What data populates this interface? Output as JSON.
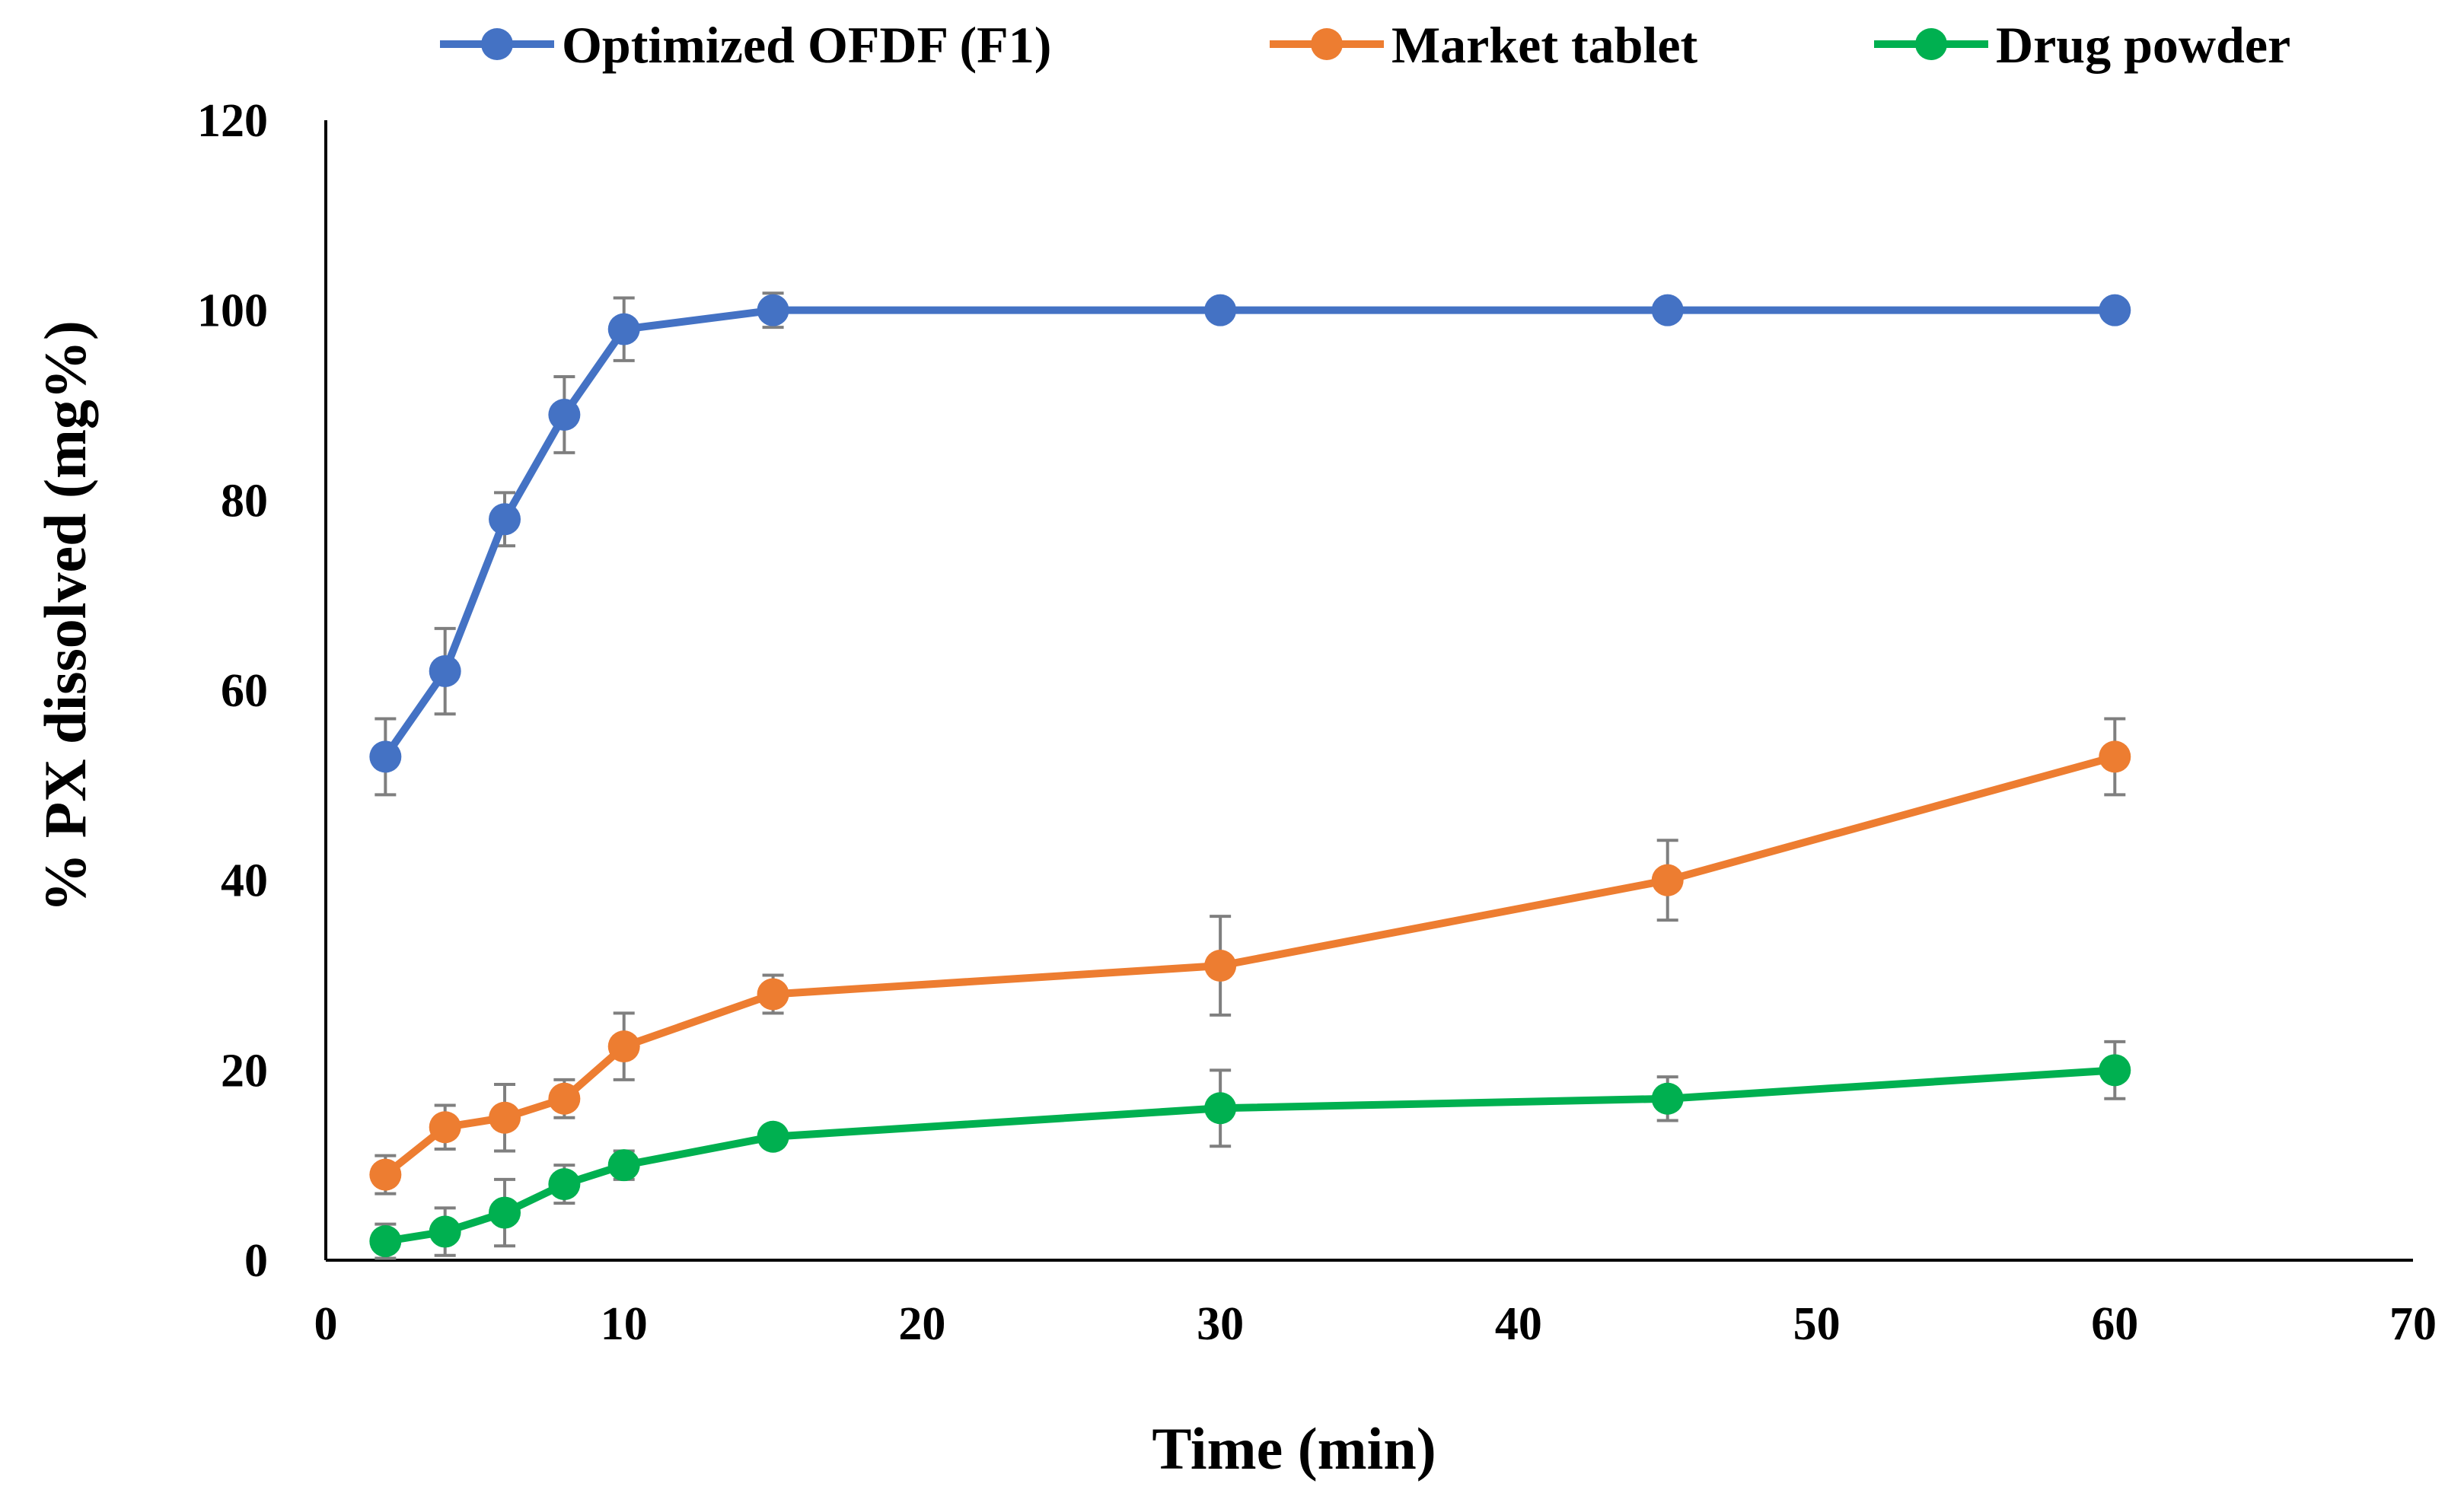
{
  "chart_data": {
    "type": "line",
    "title": "",
    "xlabel": "Time (min)",
    "ylabel": "% PX dissolved (mg%)",
    "xlim": [
      0,
      70
    ],
    "ylim": [
      0,
      120
    ],
    "xticks": [
      0,
      10,
      20,
      30,
      40,
      50,
      60,
      70
    ],
    "yticks": [
      0,
      20,
      40,
      60,
      80,
      100,
      120
    ],
    "grid": false,
    "legend_position": "top",
    "x": [
      2,
      4,
      6,
      8,
      10,
      15,
      30,
      45,
      60
    ],
    "series": [
      {
        "name": "Optimized OFDF (F1)",
        "color": "#4472C4",
        "values": [
          53,
          62,
          78,
          89,
          98,
          100,
          100,
          100,
          100
        ],
        "errors": [
          4,
          4.5,
          2.8,
          4,
          3.3,
          1.8,
          0,
          0,
          0
        ]
      },
      {
        "name": "Market tablet",
        "color": "#ED7D31",
        "values": [
          9,
          14,
          15,
          17,
          22.5,
          28,
          31,
          40,
          53
        ],
        "errors": [
          2,
          2.3,
          3.5,
          2,
          3.5,
          2,
          5.2,
          4.2,
          4
        ]
      },
      {
        "name": "Drug powder",
        "color": "#00B050",
        "values": [
          2,
          3,
          5,
          8,
          10,
          13,
          16,
          17,
          20
        ],
        "errors": [
          1.8,
          2.5,
          3.5,
          2,
          1.5,
          0.5,
          4,
          2.3,
          3
        ]
      }
    ],
    "error_bar_color": "#7F7F7F"
  }
}
